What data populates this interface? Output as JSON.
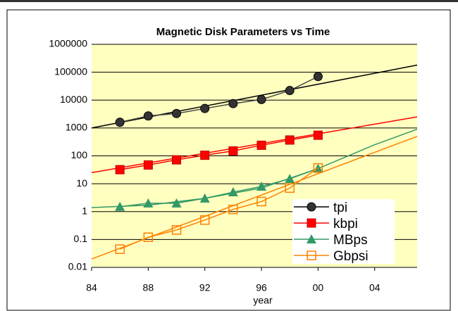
{
  "chart_data": {
    "type": "line",
    "title": "Magnetic Disk Parameters vs Time",
    "x_label": "year",
    "log_y": true,
    "grid": true,
    "legend": "lower-right",
    "xlim": [
      84,
      107
    ],
    "ylim": [
      0.01,
      1000000
    ],
    "xticks": [
      84,
      88,
      92,
      96,
      {
        "value": 100,
        "label": "00"
      },
      {
        "value": 104,
        "label": "04"
      }
    ],
    "yticks": [
      0.01,
      0.1,
      1,
      10,
      100,
      1000,
      10000,
      100000,
      1000000
    ],
    "x": [
      86,
      88,
      90,
      92,
      94,
      96,
      98,
      100
    ],
    "series": [
      {
        "name": "tpi",
        "color": "#000000",
        "marker": "circle",
        "values": [
          1600,
          2700,
          3300,
          5000,
          7500,
          10500,
          22000,
          70000
        ]
      },
      {
        "name": "kbpi",
        "color": "#ff0000",
        "marker": "square",
        "values": [
          32,
          47,
          72,
          105,
          150,
          240,
          370,
          550
        ]
      },
      {
        "name": "MBps",
        "color": "#339966",
        "marker": "triangle",
        "values": [
          1.5,
          2,
          2,
          3,
          5,
          8,
          15,
          35
        ]
      },
      {
        "name": "Gbpsi",
        "color": "#ff8000",
        "marker": "open-square",
        "values": [
          0.045,
          0.12,
          0.22,
          0.5,
          1.2,
          2.3,
          7,
          37
        ]
      }
    ],
    "trend_lines": [
      {
        "color": "#000000",
        "x": [
          84,
          107
        ],
        "values": [
          1000,
          180000
        ]
      },
      {
        "color": "#ff0000",
        "x": [
          84,
          107
        ],
        "values": [
          25,
          2500
        ]
      },
      {
        "color": "#339966",
        "x": [
          84,
          88,
          92,
          96,
          100,
          104,
          107
        ],
        "values": [
          1.4,
          1.7,
          3,
          7,
          35,
          250,
          900
        ]
      },
      {
        "color": "#ff8000",
        "x": [
          84,
          107
        ],
        "values": [
          0.02,
          500
        ]
      }
    ]
  }
}
